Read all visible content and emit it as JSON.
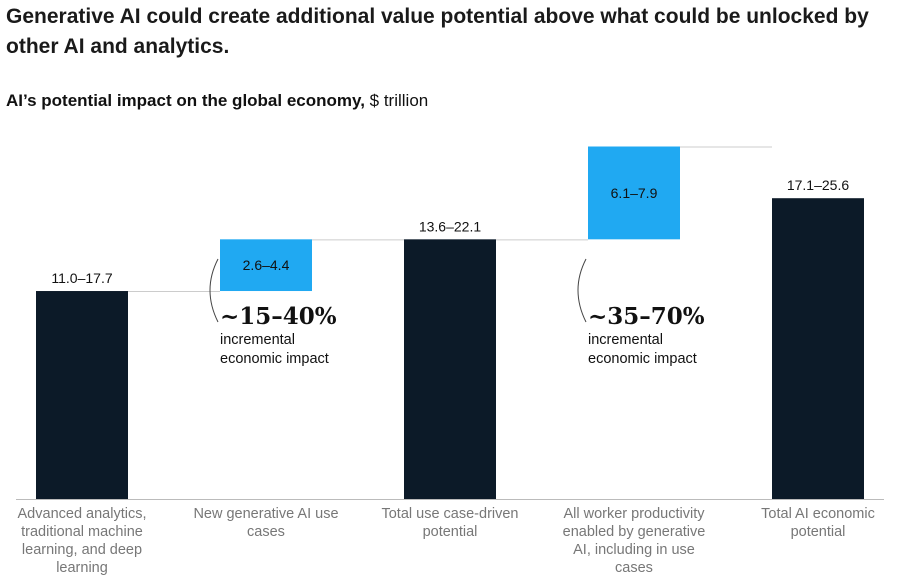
{
  "header": {
    "title": "Generative AI could create additional value potential above what could be unlocked by other AI and analytics.",
    "subtitle_bold": "AI’s potential impact on the global economy,",
    "subtitle_unit": " $ trillion"
  },
  "colors": {
    "dark_bar": "#0c1a28",
    "light_bar": "#20a9f2",
    "baseline": "#bbbbbb",
    "connector": "#cccccc"
  },
  "chart_data": {
    "type": "bar",
    "subtype": "waterfall",
    "title": "AI’s potential impact on the global economy, $ trillion",
    "categories": [
      "Advanced analytics, traditional machine learning, and deep learning",
      "New generative AI use cases",
      "Total use case-driven potential",
      "All worker productivity enabled by generative AI, including in use cases",
      "Total AI economic potential"
    ],
    "bars": [
      {
        "label": "11.0–17.7",
        "low": 11.0,
        "high": 17.7,
        "kind": "total",
        "label_position": "above"
      },
      {
        "label": "2.6–4.4",
        "low": 2.6,
        "high": 4.4,
        "kind": "increment",
        "label_position": "inside"
      },
      {
        "label": "13.6–22.1",
        "low": 13.6,
        "high": 22.1,
        "kind": "total",
        "label_position": "above"
      },
      {
        "label": "6.1–7.9",
        "low": 6.1,
        "high": 7.9,
        "kind": "increment",
        "label_position": "inside"
      },
      {
        "label": "17.1–25.6",
        "low": 17.1,
        "high": 25.6,
        "kind": "total",
        "label_position": "above"
      }
    ],
    "annotations": [
      {
        "value": "~15–40%",
        "line1": "incremental",
        "line2": "economic impact"
      },
      {
        "value": "~35–70%",
        "line1": "incremental",
        "line2": "economic impact"
      }
    ]
  }
}
